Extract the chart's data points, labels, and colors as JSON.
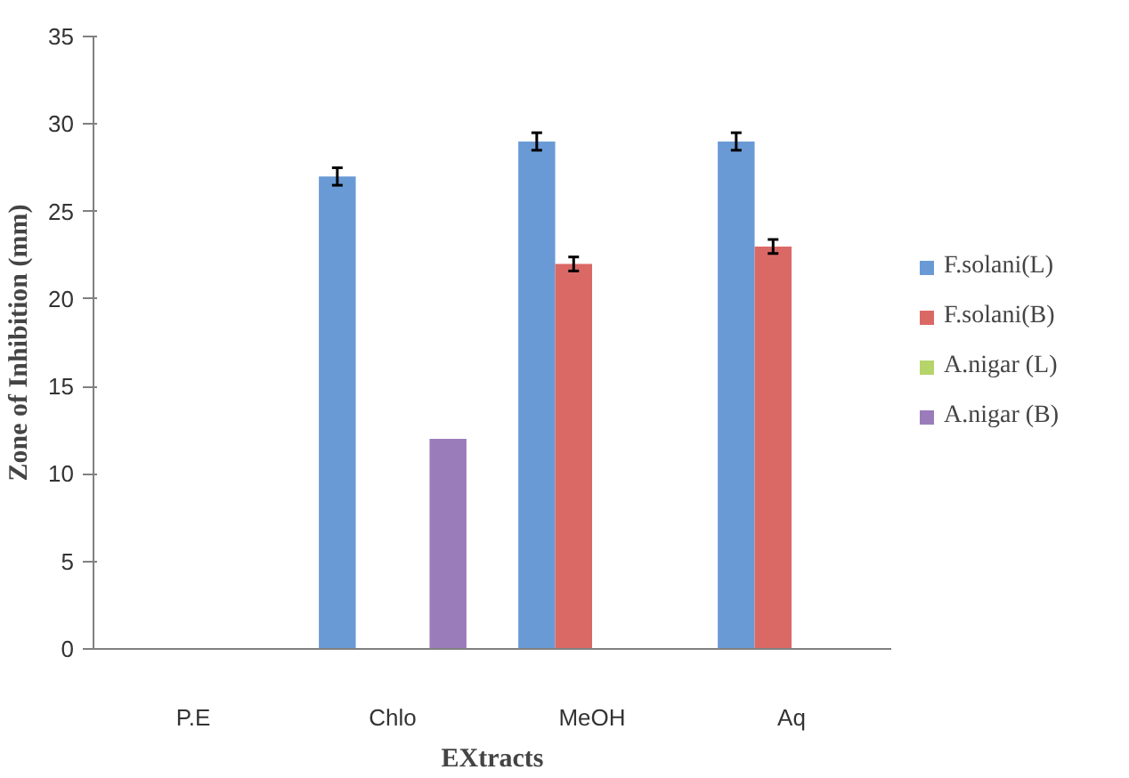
{
  "chart_data": {
    "type": "bar",
    "xlabel": "EXtracts",
    "ylabel": "Zone of Inhibition (mm)",
    "categories": [
      "P.E",
      "Chlo",
      "MeOH",
      "Aq"
    ],
    "series": [
      {
        "name": "F.solani(L)",
        "color": "#6a9ad6",
        "values": [
          0,
          27,
          29,
          29
        ],
        "errors": [
          null,
          0.5,
          0.5,
          0.5
        ]
      },
      {
        "name": "F.solani(B)",
        "color": "#da6966",
        "values": [
          0,
          0,
          22,
          23
        ],
        "errors": [
          null,
          null,
          0.4,
          0.4
        ]
      },
      {
        "name": "A.nigar (L)",
        "color": "#b5d46a",
        "values": [
          0,
          0,
          0,
          0
        ]
      },
      {
        "name": "A.nigar (B)",
        "color": "#9a7cba",
        "values": [
          0,
          12,
          0,
          0
        ]
      }
    ],
    "ylim": [
      0,
      35
    ],
    "yticks": [
      0,
      5,
      10,
      15,
      20,
      25,
      30,
      35
    ],
    "grid": false,
    "legend": "right"
  }
}
